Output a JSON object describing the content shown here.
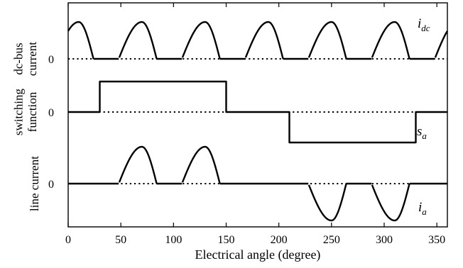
{
  "chart_data": {
    "type": "line",
    "xlabel": "Electrical angle (degree)",
    "xlim": [
      0,
      360
    ],
    "x_ticks": [
      "0",
      "50",
      "100",
      "150",
      "200",
      "250",
      "300",
      "350"
    ],
    "grid": false,
    "panels": [
      {
        "ylabel_lines": [
          "dc-bus",
          "current"
        ],
        "zero_label": "0",
        "series_label": {
          "main": "i",
          "sub": "dc"
        },
        "type": "pulse_train",
        "pulses": [
          {
            "start": -12,
            "end": 24,
            "peak": 10,
            "amplitude": 1.0
          },
          {
            "start": 48,
            "end": 84,
            "peak": 70,
            "amplitude": 1.0
          },
          {
            "start": 108,
            "end": 144,
            "peak": 130,
            "amplitude": 1.0
          },
          {
            "start": 168,
            "end": 204,
            "peak": 190,
            "amplitude": 1.0
          },
          {
            "start": 228,
            "end": 264,
            "peak": 250,
            "amplitude": 1.0
          },
          {
            "start": 288,
            "end": 324,
            "peak": 310,
            "amplitude": 1.0
          },
          {
            "start": 348,
            "end": 384,
            "peak": 370,
            "amplitude": 1.0
          }
        ]
      },
      {
        "ylabel_lines": [
          "switching",
          "function"
        ],
        "zero_label": "0",
        "series_label": {
          "main": "s",
          "sub": "a"
        },
        "type": "step",
        "steps": [
          {
            "x": 0,
            "y": 0
          },
          {
            "x": 30,
            "y": 1
          },
          {
            "x": 150,
            "y": 0
          },
          {
            "x": 210,
            "y": -1
          },
          {
            "x": 330,
            "y": 0
          },
          {
            "x": 360,
            "y": 0
          }
        ]
      },
      {
        "ylabel_lines": [
          "line current"
        ],
        "zero_label": "0",
        "series_label": {
          "main": "i",
          "sub": "a"
        },
        "type": "pulse_train",
        "pulses": [
          {
            "start": 48,
            "end": 84,
            "peak": 70,
            "amplitude": 1.0
          },
          {
            "start": 108,
            "end": 144,
            "peak": 130,
            "amplitude": 1.0
          },
          {
            "start": 228,
            "end": 264,
            "peak": 250,
            "amplitude": -1.0
          },
          {
            "start": 288,
            "end": 324,
            "peak": 310,
            "amplitude": -1.0
          }
        ]
      }
    ]
  }
}
